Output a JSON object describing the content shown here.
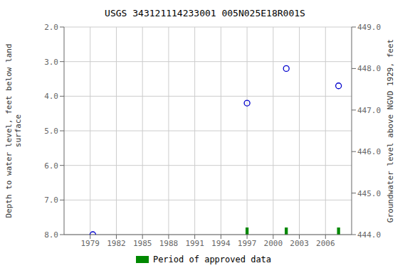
{
  "chart_data": {
    "type": "scatter",
    "title": "USGS 343121114233001 005N025E18R001S",
    "ylabel": "Depth to water level, feet below land\nsurface",
    "y2label": "Groundwater level above NGVD 1929, feet",
    "xlim": [
      1976,
      2009
    ],
    "xticks": [
      1979,
      1982,
      1985,
      1988,
      1991,
      1994,
      1997,
      2000,
      2003,
      2006
    ],
    "ylim": [
      8.0,
      2.0
    ],
    "yticks": [
      {
        "value": 2.0,
        "label": "2.0"
      },
      {
        "value": 3.0,
        "label": "3.0"
      },
      {
        "value": 4.0,
        "label": "4.0"
      },
      {
        "value": 5.0,
        "label": "5.0"
      },
      {
        "value": 6.0,
        "label": "6.0"
      },
      {
        "value": 7.0,
        "label": "7.0"
      },
      {
        "value": 8.0,
        "label": "8.0"
      }
    ],
    "y2lim": [
      444.0,
      449.0
    ],
    "y2ticks": [
      {
        "value": 449.0,
        "label": "449.0"
      },
      {
        "value": 448.0,
        "label": "448.0"
      },
      {
        "value": 447.0,
        "label": "447.0"
      },
      {
        "value": 446.0,
        "label": "446.0"
      },
      {
        "value": 445.0,
        "label": "445.0"
      },
      {
        "value": 444.0,
        "label": "444.0"
      }
    ],
    "grid": true,
    "x": [
      1979.3,
      1997.0,
      2001.5,
      2007.5
    ],
    "values": [
      8.0,
      4.2,
      3.2,
      3.7
    ],
    "color": "#0000cc",
    "marker": "open_circle",
    "legend": "bottom",
    "series": [
      {
        "name": "Period of approved data",
        "type": "bar",
        "color": "#008800",
        "x": [
          1997.0,
          2001.5,
          2007.5
        ],
        "width": [
          0.35,
          0.35,
          0.35
        ]
      }
    ]
  }
}
